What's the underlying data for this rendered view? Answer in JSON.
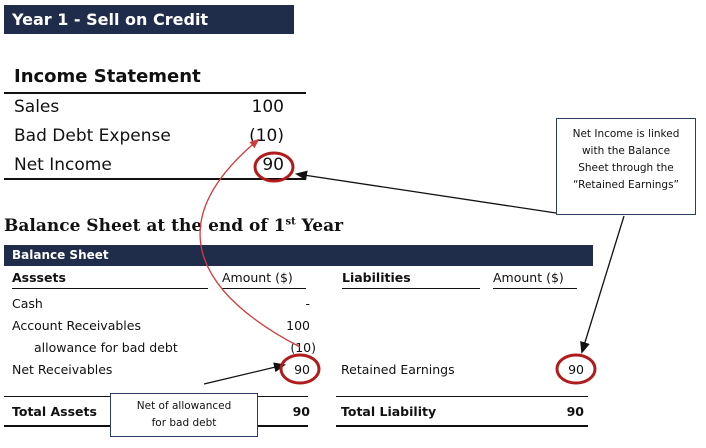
{
  "title": "Year 1 - Sell on Credit",
  "income_statement": {
    "heading": "Income Statement",
    "rows": [
      {
        "label": "Sales",
        "value": "100"
      },
      {
        "label": "Bad Debt Expense",
        "value": "(10)"
      },
      {
        "label": "Net Income",
        "value": "90"
      }
    ]
  },
  "balance_sheet": {
    "heading_main": "Balance Sheet at the end of 1",
    "heading_sup": "st",
    "heading_tail": " Year",
    "bar_title": "Balance Sheet",
    "assets_header": "Asssets",
    "assets_amount_header": "Amount ($)",
    "liabilities_header": "Liabilities",
    "liabilities_amount_header": "Amount ($)",
    "rows": {
      "cash": {
        "label": "Cash",
        "value": "-"
      },
      "ar": {
        "label": "Account Receivables",
        "value": "100"
      },
      "allowance": {
        "label": "allowance for bad debt",
        "value": "(10)"
      },
      "net_receivables": {
        "label": "Net Receivables",
        "value": "90"
      },
      "retained_earnings": {
        "label": "Retained Earnings",
        "value": "90"
      }
    },
    "total_assets": {
      "label": "Total Assets",
      "value": "90"
    },
    "total_liability": {
      "label": "Total Liability",
      "value": "90"
    }
  },
  "callouts": {
    "net_income_link": [
      "Net Income is linked",
      "with the Balance",
      "Sheet through the",
      "“Retained Earnings”"
    ],
    "net_of_allowance": [
      "Net of allowanced",
      "for bad debt"
    ]
  },
  "colors": {
    "header_bg": "#1f2d4a",
    "circle": "#b01c1c",
    "arrow": "#111111",
    "red_arrow": "#d23b3b"
  }
}
